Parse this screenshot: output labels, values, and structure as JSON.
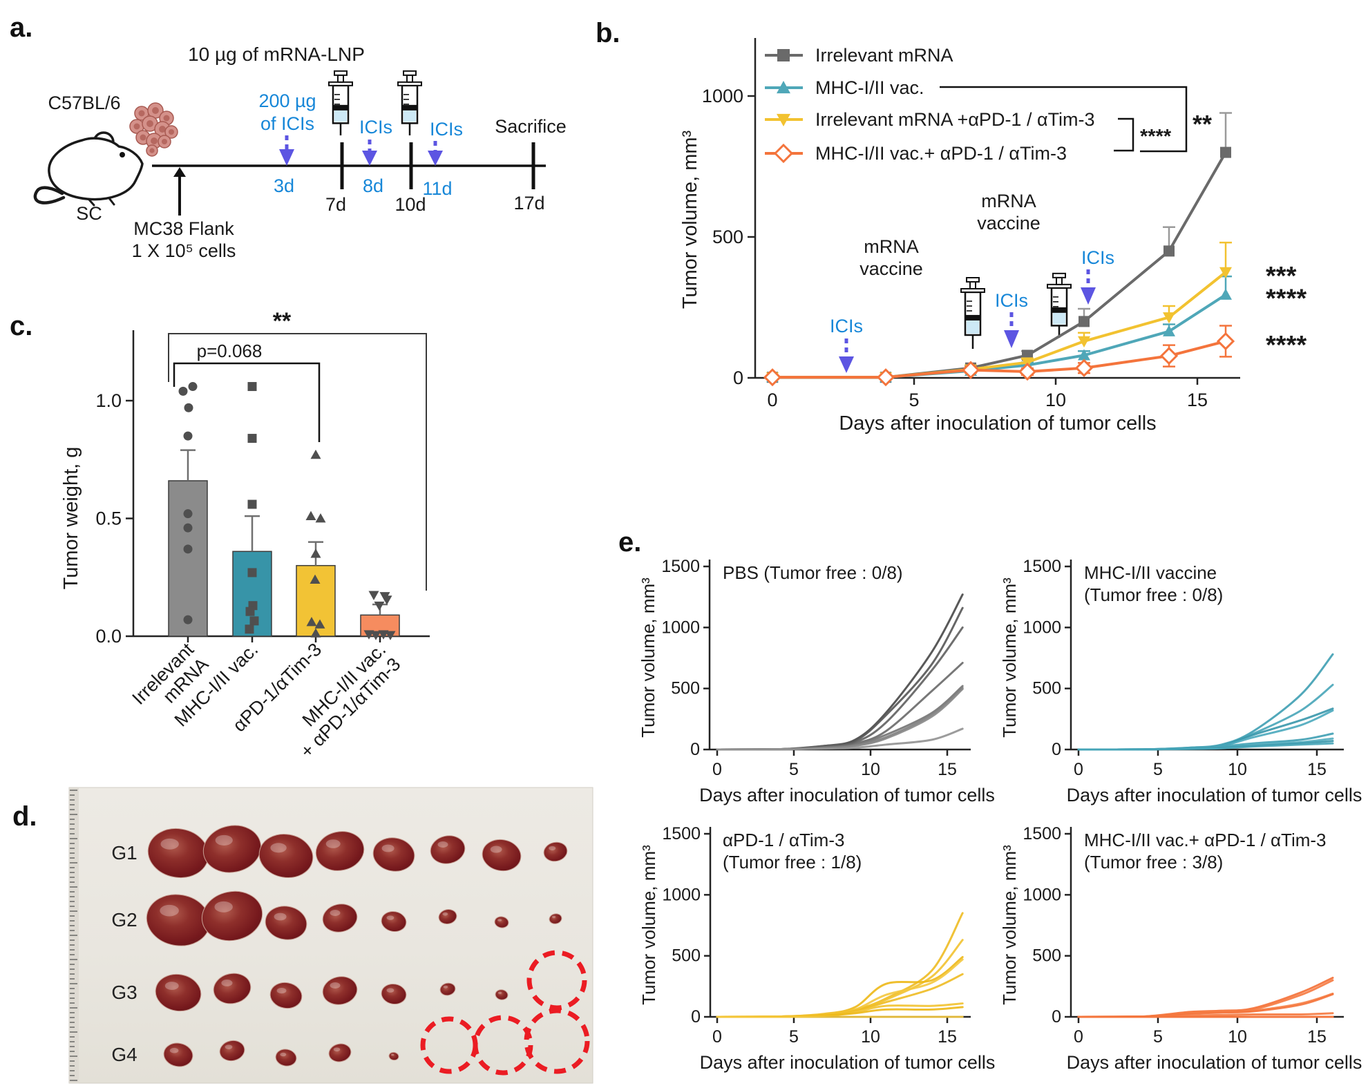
{
  "panels": {
    "a": "a.",
    "b": "b.",
    "c": "c.",
    "d": "d.",
    "e": "e."
  },
  "colors": {
    "gray_line": "#6a6a6a",
    "teal_line": "#4fa7b8",
    "yellow_line": "#f2c230",
    "orange_line": "#f4743c",
    "gray_bar": "#8b8b8b",
    "teal_bar": "#3794a8",
    "yellow_bar": "#f2c335",
    "orange_bar": "#f68c5f",
    "ici_text_blue": "#1787d8",
    "ici_arrow_blue": "#5c55e2",
    "red_dashed_circle": "#eb1c23",
    "photo_background": "#eae7e0",
    "axis_black": "#232323",
    "scatter_point_gray": "#4f4f4f",
    "gray_shades": [
      "#474747",
      "#555555",
      "#5f5f5f",
      "#696969",
      "#737373",
      "#7d7d7d",
      "#878787",
      "#919191"
    ]
  },
  "panel_a": {
    "strain": "C57BL/6",
    "route": "SC",
    "inoculation_lines": [
      "MC38 Flank",
      "1 X 10⁵ cells"
    ],
    "mrna_label": "10 µg of mRNA-LNP",
    "ici_first_lines": [
      "200 µg",
      "of ICIs"
    ],
    "ici_label": "ICIs",
    "sacrifice_label": "Sacrifice",
    "blue_days": [
      "3d",
      "8d",
      "11d"
    ],
    "black_days": [
      "7d",
      "10d",
      "17d"
    ]
  },
  "panel_d": {
    "rows": [
      {
        "label": "G1",
        "tumor_sizes": [
          44,
          42,
          39,
          35,
          30,
          25,
          28,
          17
        ],
        "empty_circles": []
      },
      {
        "label": "G2",
        "tumor_sizes": [
          46,
          44,
          30,
          25,
          18,
          13,
          10,
          9
        ],
        "empty_circles": []
      },
      {
        "label": "G3",
        "tumor_sizes": [
          33,
          27,
          23,
          25,
          18,
          11,
          9
        ],
        "empty_circles": [
          {
            "col": 8,
            "r": 40,
            "dy": -18
          }
        ]
      },
      {
        "label": "G4",
        "tumor_sizes": [
          21,
          18,
          15,
          16,
          7
        ],
        "empty_circles": [
          {
            "col": 6,
            "r": 38,
            "dy": -14
          },
          {
            "col": 7,
            "r": 40,
            "dy": -14
          },
          {
            "col": 8,
            "r": 44,
            "dy": -20
          }
        ]
      }
    ]
  },
  "chart_data": [
    {
      "id": "b-tumor-volume",
      "type": "line",
      "title": "",
      "xlabel": "Days after inoculation of tumor cells",
      "ylabel": "Tumor volume, mm³",
      "x": [
        0,
        4,
        7,
        9,
        11,
        14,
        16
      ],
      "xticks": [
        0,
        5,
        10,
        15
      ],
      "yticks": [
        0,
        500,
        1000
      ],
      "ylim": [
        0,
        1190
      ],
      "legend_position": "top-left-inside",
      "series": [
        {
          "name": "Irrelevant mRNA",
          "marker": "square",
          "color": "#6a6a6a",
          "err_color": "#9a9a9a",
          "err_dir": "up",
          "values": [
            2,
            2,
            35,
            80,
            200,
            450,
            800
          ],
          "err": [
            0,
            0,
            8,
            15,
            45,
            85,
            140
          ],
          "end_sig": ""
        },
        {
          "name": "MHC-I/II vac.",
          "marker": "triangle-up",
          "color": "#4fa7b8",
          "err_color": "#4fa7b8",
          "err_dir": "up",
          "values": [
            2,
            2,
            25,
            45,
            80,
            165,
            295
          ],
          "err": [
            6,
            6,
            8,
            10,
            15,
            25,
            65
          ],
          "end_sig": "****"
        },
        {
          "name": "Irrelevant mRNA +αPD-1 / αTim-3",
          "marker": "triangle-down",
          "color": "#f2c230",
          "err_color": "#f2c230",
          "err_dir": "up",
          "values": [
            2,
            2,
            30,
            55,
            130,
            215,
            375
          ],
          "err": [
            0,
            0,
            8,
            12,
            30,
            40,
            105
          ],
          "end_sig": "***"
        },
        {
          "name": "MHC-I/II vac.+ αPD-1 / αTim-3",
          "marker": "diamond-open",
          "color": "#f4743c",
          "err_color": "#f4743c",
          "err_dir": "both",
          "values": [
            2,
            2,
            28,
            22,
            35,
            78,
            130
          ],
          "err": [
            5,
            5,
            10,
            12,
            18,
            38,
            55
          ],
          "end_sig": "****"
        }
      ],
      "comparison_brackets": [
        {
          "label": "**",
          "between": [
            "MHC-I/II vac.",
            "MHC-I/II vac.+ αPD-1 / αTim-3"
          ]
        },
        {
          "label": "****",
          "between": [
            "Irrelevant mRNA +αPD-1 / αTim-3",
            "MHC-I/II vac.+ αPD-1 / αTim-3"
          ]
        }
      ],
      "events": {
        "ici_label": "ICIs",
        "vaccine_label_lines": [
          "mRNA",
          "vaccine"
        ],
        "ici_days": [
          2.5,
          8,
          11
        ],
        "vaccine_days": [
          7,
          10
        ]
      }
    },
    {
      "id": "c-tumor-weight",
      "type": "bar",
      "ylabel": "Tumor weight, g",
      "yticks": [
        0.0,
        0.5,
        1.0
      ],
      "categories": [
        [
          "Irrelevant",
          "mRNA"
        ],
        [
          "MHC-I/II vac."
        ],
        [
          "αPD-1/αTim-3"
        ],
        [
          "MHC-I/II vac.",
          "+ αPD-1/αTim-3"
        ]
      ],
      "values": [
        0.66,
        0.36,
        0.3,
        0.09
      ],
      "errors": [
        0.13,
        0.15,
        0.1,
        0.045
      ],
      "bar_colors": [
        "#8b8b8b",
        "#3794a8",
        "#f2c335",
        "#f68c5f"
      ],
      "point_shapes": [
        "circle",
        "square",
        "triangle-up",
        "triangle-down"
      ],
      "points": [
        [
          [
            -7,
            1.04
          ],
          [
            7,
            1.06
          ],
          [
            1,
            0.97
          ],
          [
            0,
            0.85
          ],
          [
            0,
            0.52
          ],
          [
            0,
            0.46
          ],
          [
            0,
            0.37
          ],
          [
            0,
            0.07
          ]
        ],
        [
          [
            0,
            1.06
          ],
          [
            0,
            0.84
          ],
          [
            0,
            0.56
          ],
          [
            0,
            0.27
          ],
          [
            1,
            0.13
          ],
          [
            -3,
            0.105
          ],
          [
            3,
            0.065
          ],
          [
            -4,
            0.03
          ]
        ],
        [
          [
            0,
            0.77
          ],
          [
            -7,
            0.51
          ],
          [
            7,
            0.5
          ],
          [
            0,
            0.35
          ],
          [
            -1,
            0.24
          ],
          [
            -6,
            0.06
          ],
          [
            6,
            0.05
          ],
          [
            0,
            0.012
          ]
        ],
        [
          [
            -9,
            0.175
          ],
          [
            7,
            0.17
          ],
          [
            10,
            0.155
          ],
          [
            -1,
            0.13
          ],
          [
            -16,
            0.008
          ],
          [
            -6,
            0.005
          ],
          [
            5,
            0.008
          ],
          [
            15,
            0.005
          ]
        ]
      ],
      "significance": [
        {
          "label": "**",
          "pair": [
            1,
            4
          ]
        },
        {
          "label": "p=0.068",
          "pair": [
            1,
            3
          ]
        }
      ]
    },
    {
      "id": "e-pbs",
      "type": "line",
      "title_lines": [
        "PBS (Tumor free : 0/8)"
      ],
      "palette": "grays",
      "xlabel": "Days after inoculation of tumor cells",
      "ylabel": "Tumor volume, mm³",
      "xticks": [
        0,
        5,
        10,
        15
      ],
      "yticks": [
        0,
        500,
        1000,
        1500
      ],
      "x": [
        0,
        4,
        7,
        9,
        11,
        14,
        16
      ],
      "curves": [
        [
          0,
          2,
          30,
          80,
          300,
          800,
          1270
        ],
        [
          0,
          2,
          25,
          70,
          280,
          700,
          1160
        ],
        [
          0,
          2,
          30,
          60,
          220,
          650,
          1000
        ],
        [
          0,
          2,
          20,
          50,
          150,
          480,
          710
        ],
        [
          0,
          2,
          15,
          40,
          120,
          300,
          520
        ],
        [
          0,
          2,
          15,
          35,
          100,
          285,
          505
        ],
        [
          0,
          2,
          10,
          30,
          90,
          270,
          495
        ],
        [
          0,
          1,
          8,
          15,
          40,
          80,
          170
        ]
      ]
    },
    {
      "id": "e-mhc-vaccine",
      "type": "line",
      "title_lines": [
        "MHC-I/II vaccine",
        "(Tumor free : 0/8)"
      ],
      "palette": "teal",
      "xlabel": "Days after inoculation of tumor cells",
      "ylabel": "Tumor volume, mm³",
      "xticks": [
        0,
        5,
        10,
        15
      ],
      "yticks": [
        0,
        500,
        1000,
        1500
      ],
      "x": [
        0,
        4,
        7,
        9,
        11,
        14,
        16
      ],
      "curves": [
        [
          0,
          1,
          15,
          40,
          150,
          450,
          780
        ],
        [
          0,
          1,
          15,
          35,
          130,
          320,
          530
        ],
        [
          0,
          1,
          12,
          30,
          120,
          240,
          335
        ],
        [
          0,
          1,
          10,
          30,
          100,
          200,
          320
        ],
        [
          0,
          1,
          8,
          25,
          50,
          80,
          130
        ],
        [
          0,
          1,
          8,
          20,
          40,
          60,
          90
        ],
        [
          0,
          1,
          5,
          15,
          30,
          50,
          70
        ],
        [
          0,
          1,
          5,
          10,
          25,
          40,
          50
        ]
      ]
    },
    {
      "id": "e-ici",
      "type": "line",
      "title_lines": [
        "αPD-1 / αTim-3",
        "(Tumor free : 1/8)"
      ],
      "palette": "yellow",
      "xlabel": "Days after inoculation of tumor cells",
      "ylabel": "Tumor volume, mm³",
      "xticks": [
        0,
        5,
        10,
        15
      ],
      "yticks": [
        0,
        500,
        1000,
        1500
      ],
      "x": [
        0,
        4,
        7,
        9,
        11,
        14,
        16
      ],
      "curves": [
        [
          0,
          2,
          20,
          60,
          150,
          380,
          850
        ],
        [
          0,
          2,
          20,
          55,
          140,
          330,
          630
        ],
        [
          0,
          2,
          25,
          80,
          270,
          300,
          490
        ],
        [
          0,
          2,
          20,
          60,
          180,
          280,
          470
        ],
        [
          0,
          2,
          15,
          50,
          120,
          230,
          350
        ],
        [
          0,
          1,
          10,
          40,
          90,
          90,
          110
        ],
        [
          0,
          1,
          10,
          30,
          60,
          60,
          80
        ],
        [
          0,
          0,
          0,
          0,
          0,
          0,
          0
        ]
      ]
    },
    {
      "id": "e-combo",
      "type": "line",
      "title_lines": [
        "MHC-I/II vac.+ αPD-1 / αTim-3",
        "(Tumor free : 3/8)"
      ],
      "palette": "orange",
      "xlabel": "Days after inoculation of tumor cells",
      "ylabel": "Tumor volume, mm³",
      "xticks": [
        0,
        5,
        10,
        15
      ],
      "yticks": [
        0,
        500,
        1000,
        1500
      ],
      "x": [
        0,
        4,
        7,
        9,
        11,
        14,
        16
      ],
      "curves": [
        [
          0,
          2,
          40,
          50,
          70,
          200,
          320
        ],
        [
          0,
          2,
          35,
          45,
          60,
          180,
          300
        ],
        [
          0,
          2,
          30,
          40,
          50,
          110,
          190
        ],
        [
          0,
          2,
          25,
          35,
          45,
          100,
          185
        ],
        [
          0,
          1,
          10,
          15,
          20,
          20,
          30
        ],
        [
          0,
          0,
          0,
          0,
          0,
          0,
          0
        ],
        [
          0,
          0,
          0,
          0,
          0,
          0,
          0
        ],
        [
          0,
          0,
          0,
          0,
          0,
          0,
          0
        ]
      ]
    }
  ]
}
